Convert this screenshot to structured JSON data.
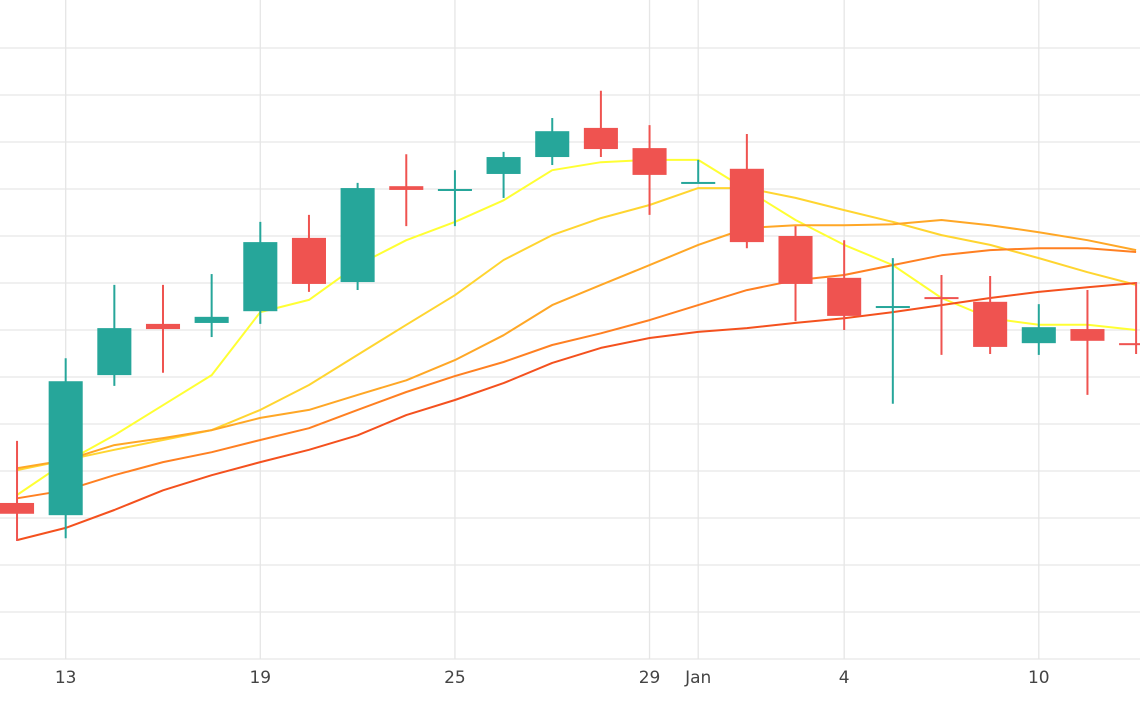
{
  "chart_data": {
    "type": "candlestick",
    "x": [
      0,
      1,
      2,
      3,
      4,
      5,
      6,
      7,
      8,
      9,
      10,
      11,
      12,
      13,
      14,
      15,
      16,
      17,
      18,
      19,
      20,
      21,
      22,
      23
    ],
    "open": [
      3.32,
      3.06,
      6.04,
      7.13,
      7.15,
      7.4,
      8.96,
      8.02,
      10.06,
      9.98,
      10.32,
      10.68,
      11.3,
      10.87,
      10.13,
      10.43,
      9.0,
      8.11,
      7.47,
      7.7,
      7.6,
      6.72,
      7.02,
      6.72
    ],
    "high": [
      4.64,
      6.4,
      7.96,
      7.96,
      8.19,
      9.3,
      9.45,
      10.13,
      10.74,
      10.4,
      10.79,
      11.51,
      12.09,
      11.36,
      10.62,
      11.17,
      9.21,
      8.91,
      8.53,
      8.17,
      8.15,
      7.55,
      7.85,
      8.02
    ],
    "low": [
      2.51,
      2.57,
      5.81,
      6.09,
      6.85,
      7.13,
      7.81,
      7.85,
      9.21,
      9.21,
      9.81,
      10.51,
      10.68,
      9.45,
      10.13,
      8.74,
      7.19,
      7.0,
      5.43,
      6.47,
      6.49,
      6.47,
      5.62,
      6.49
    ],
    "close": [
      3.09,
      5.91,
      7.04,
      7.02,
      7.28,
      8.87,
      7.98,
      10.02,
      9.98,
      10.0,
      10.68,
      11.23,
      10.85,
      10.3,
      10.15,
      8.87,
      7.98,
      7.3,
      7.51,
      7.66,
      6.64,
      7.06,
      6.77,
      6.7
    ],
    "increasing_color": "#26a69a",
    "decreasing_color": "#ef5350",
    "lines": [
      {
        "color": "#ffff33",
        "values": [
          3.49,
          4.19,
          4.76,
          5.4,
          6.04,
          7.38,
          7.64,
          8.38,
          8.91,
          9.3,
          9.76,
          10.4,
          10.57,
          10.62,
          10.62,
          9.98,
          9.34,
          8.81,
          8.38,
          7.68,
          7.25,
          7.11,
          7.11,
          7.0
        ]
      },
      {
        "color": "#ffd530",
        "values": [
          4.02,
          4.23,
          4.45,
          4.66,
          4.87,
          5.3,
          5.83,
          6.47,
          7.11,
          7.74,
          8.49,
          9.02,
          9.38,
          9.66,
          10.02,
          10.02,
          9.81,
          9.55,
          9.3,
          9.02,
          8.81,
          8.53,
          8.23,
          7.96
        ]
      },
      {
        "color": "#ffa726",
        "values": [
          4.06,
          4.23,
          4.55,
          4.7,
          4.87,
          5.13,
          5.3,
          5.62,
          5.93,
          6.36,
          6.89,
          7.53,
          7.96,
          8.38,
          8.81,
          9.17,
          9.23,
          9.23,
          9.25,
          9.34,
          9.23,
          9.08,
          8.91,
          8.7
        ]
      },
      {
        "color": "#ff8022",
        "values": [
          3.42,
          3.59,
          3.91,
          4.19,
          4.4,
          4.66,
          4.91,
          5.3,
          5.68,
          6.02,
          6.32,
          6.68,
          6.93,
          7.21,
          7.53,
          7.85,
          8.06,
          8.17,
          8.38,
          8.59,
          8.7,
          8.74,
          8.74,
          8.66
        ]
      },
      {
        "color": "#f4511e",
        "values": [
          2.53,
          2.79,
          3.17,
          3.59,
          3.91,
          4.19,
          4.45,
          4.76,
          5.19,
          5.51,
          5.87,
          6.3,
          6.62,
          6.83,
          6.96,
          7.04,
          7.15,
          7.25,
          7.38,
          7.53,
          7.68,
          7.81,
          7.91,
          8.0
        ]
      }
    ],
    "xlim": [
      -0.35,
      23.08
    ],
    "xticks": [
      {
        "value": 1,
        "label": "13"
      },
      {
        "value": 5,
        "label": "19"
      },
      {
        "value": 9,
        "label": "25"
      },
      {
        "value": 13,
        "label": "29"
      },
      {
        "value": 14,
        "label": "Jan"
      },
      {
        "value": 17,
        "label": "4"
      },
      {
        "value": 21,
        "label": "10"
      }
    ],
    "ylim": [
      0,
      14
    ],
    "yticks": [
      0,
      1,
      2,
      3,
      4,
      5,
      6,
      7,
      8,
      9,
      10,
      11,
      12,
      13
    ],
    "grid": true
  }
}
